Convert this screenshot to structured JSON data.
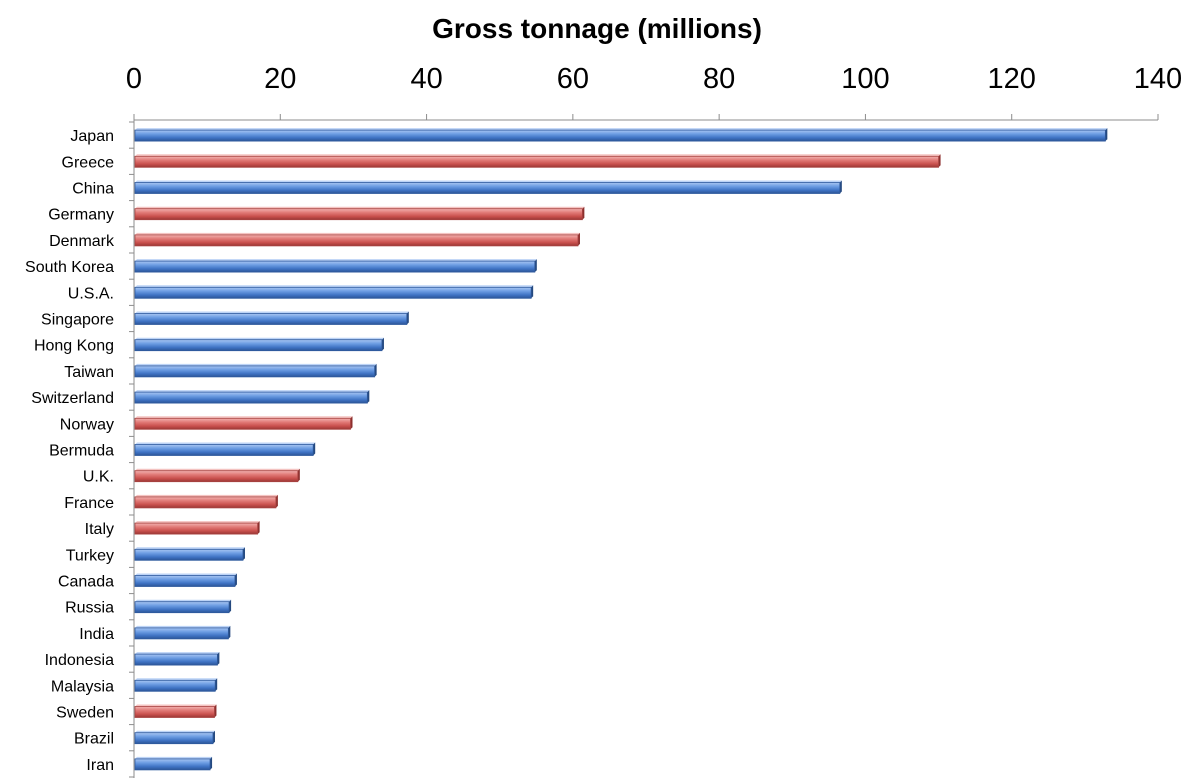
{
  "chart_data": {
    "type": "bar",
    "orientation": "horizontal",
    "title": "Gross tonnage (millions)",
    "xlabel": "",
    "ylabel": "",
    "xaxis_position": "top",
    "xlim": [
      0,
      140
    ],
    "xticks": [
      0,
      20,
      40,
      60,
      80,
      100,
      120,
      140
    ],
    "grid": false,
    "legend": "none",
    "categories": [
      "Japan",
      "Greece",
      "China",
      "Germany",
      "Denmark",
      "South Korea",
      "U.S.A.",
      "Singapore",
      "Hong Kong",
      "Taiwan",
      "Switzerland",
      "Norway",
      "Bermuda",
      "U.K.",
      "France",
      "Italy",
      "Turkey",
      "Canada",
      "Russia",
      "India",
      "Indonesia",
      "Malaysia",
      "Sweden",
      "Brazil",
      "Iran"
    ],
    "values": [
      132.8,
      110.0,
      96.5,
      61.3,
      60.7,
      54.8,
      54.3,
      37.3,
      33.9,
      32.9,
      31.9,
      29.6,
      24.5,
      22.4,
      19.4,
      16.9,
      14.9,
      13.8,
      13.0,
      12.9,
      11.4,
      11.1,
      11.0,
      10.8,
      10.4
    ],
    "bar_colors": [
      "blue",
      "red",
      "blue",
      "red",
      "red",
      "blue",
      "blue",
      "blue",
      "blue",
      "blue",
      "blue",
      "red",
      "blue",
      "red",
      "red",
      "red",
      "blue",
      "blue",
      "blue",
      "blue",
      "blue",
      "blue",
      "red",
      "blue",
      "blue"
    ],
    "colors": {
      "blue": "#4a7fd0",
      "red": "#d25a5a"
    }
  }
}
